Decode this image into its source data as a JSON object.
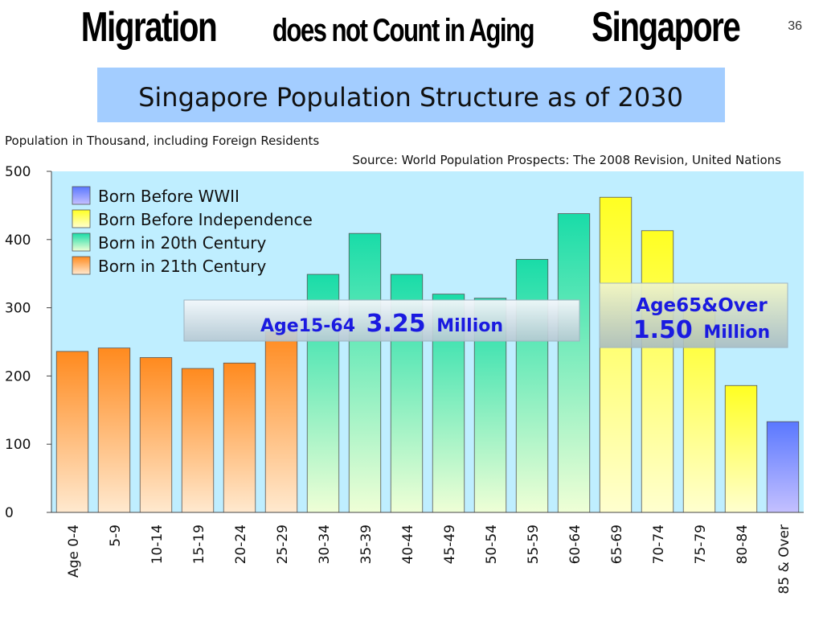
{
  "slide": {
    "title_part1": "Migration",
    "title_part2": " does not Count in Aging ",
    "title_part3": "Singapore",
    "page_number": "36"
  },
  "chart_data": {
    "type": "bar",
    "title": "Singapore Population Structure as of 2030",
    "ylabel": "Population in Thousand, including Foreign Residents",
    "source": "Source: World Population Prospects: The 2008 Revision, United Nations",
    "ylim": [
      0,
      500
    ],
    "yticks": [
      0,
      100,
      200,
      300,
      400,
      500
    ],
    "grid": false,
    "legend_position": "top-left",
    "categories": [
      "Age 0-4",
      "5-9",
      "10-14",
      "15-19",
      "20-24",
      "25-29",
      "30-34",
      "35-39",
      "40-44",
      "45-49",
      "50-54",
      "55-59",
      "60-64",
      "65-69",
      "70-74",
      "75-79",
      "80-84",
      "85 & Over"
    ],
    "values": [
      236,
      241,
      227,
      211,
      219,
      265,
      349,
      409,
      349,
      320,
      314,
      371,
      438,
      462,
      413,
      300,
      186,
      133
    ],
    "groups": [
      "21",
      "21",
      "21",
      "21",
      "21",
      "21",
      "20",
      "20",
      "20",
      "20",
      "20",
      "20",
      "20",
      "ind",
      "ind",
      "ind",
      "ind",
      "ww"
    ],
    "legend": [
      {
        "key": "ww",
        "label": "Born Before WWII",
        "color": "#6f86ff"
      },
      {
        "key": "ind",
        "label": "Born Before Independence",
        "color": "#ffff33"
      },
      {
        "key": "20",
        "label": "Born in 20th Century",
        "color": "#22ddaa"
      },
      {
        "key": "21",
        "label": "Born in 21th Century",
        "color": "#ff8a1e"
      }
    ],
    "annotations": [
      {
        "label": "Age15-64",
        "value": "3.25",
        "unit": "Million"
      },
      {
        "label": "Age65&Over",
        "value": "1.50",
        "unit": "Million"
      }
    ]
  }
}
